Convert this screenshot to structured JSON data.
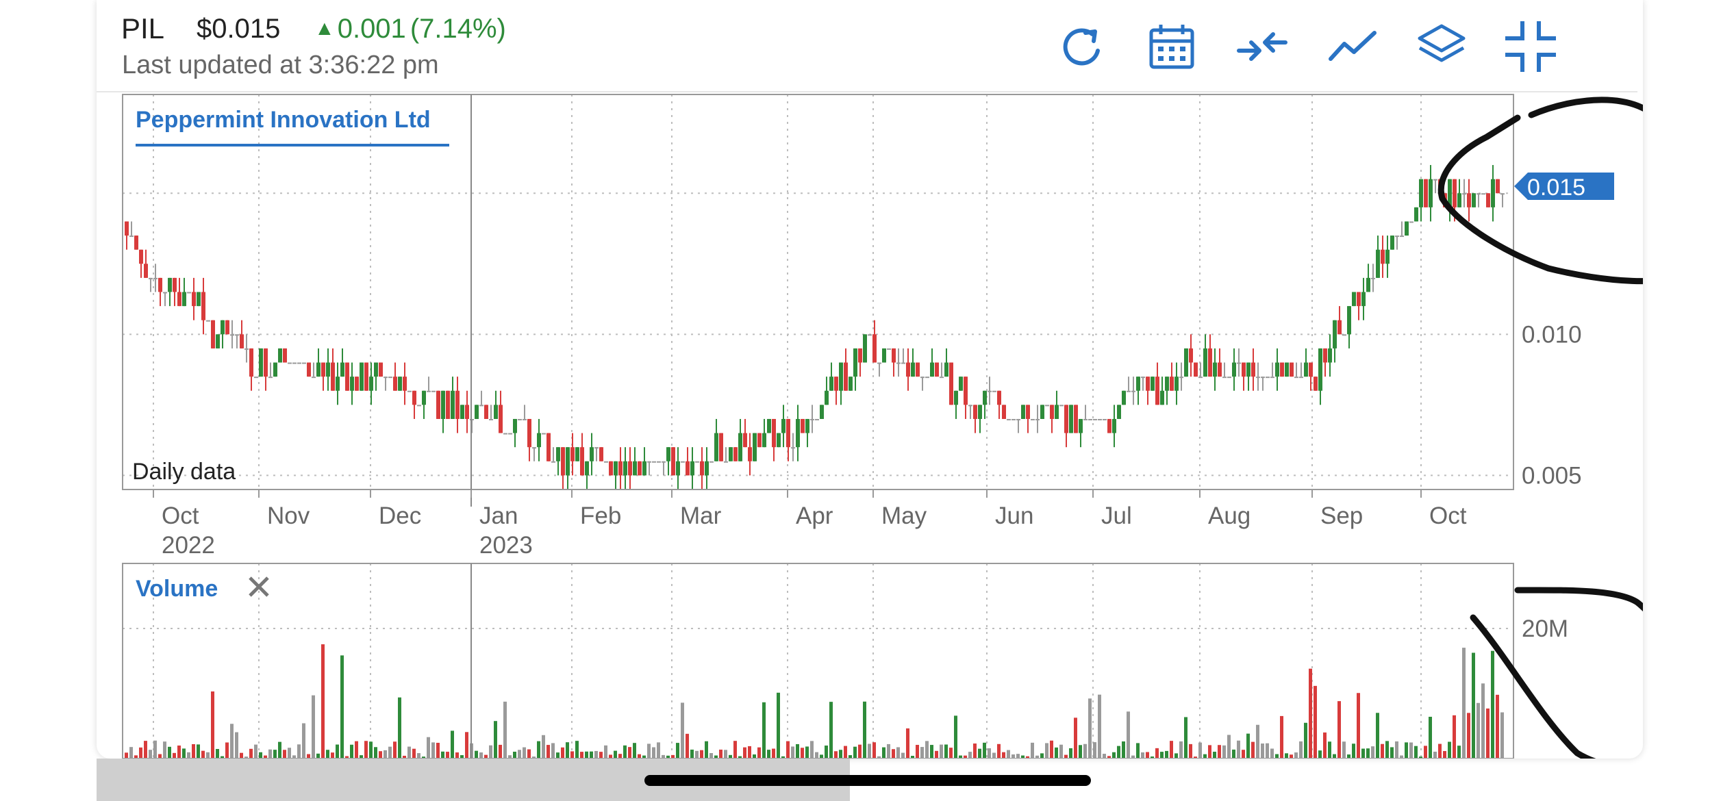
{
  "header": {
    "ticker": "PIL",
    "price": "$0.015",
    "change": "0.001",
    "change_pct": "(7.14%)",
    "updated": "Last updated at 3:36:22 pm",
    "up_color": "#2e8b3a",
    "toolbar": [
      {
        "name": "refresh-icon"
      },
      {
        "name": "calendar-icon"
      },
      {
        "name": "compare-arrows-icon"
      },
      {
        "name": "line-chart-icon"
      },
      {
        "name": "layers-icon"
      },
      {
        "name": "collapse-icon"
      }
    ]
  },
  "colors": {
    "accent": "#2a73c4",
    "up": "#2e8b3a",
    "down": "#d83b3b",
    "flat": "#9a9a9a",
    "grid": "#bdbdbd",
    "annotation": "#111111"
  },
  "chart_data": [
    {
      "type": "candlestick",
      "title": "Peppermint Innovation Ltd",
      "footnote": "Daily data",
      "x_tick_labels": [
        "Oct",
        "Nov",
        "Dec",
        "Jan",
        "Feb",
        "Mar",
        "Apr",
        "May",
        "Jun",
        "Jul",
        "Aug",
        "Sep",
        "Oct"
      ],
      "x_tick_year_labels": {
        "0": "2022",
        "3": "2023"
      },
      "y_tick_labels": [
        "0.005",
        "0.010"
      ],
      "ylim": [
        0.0045,
        0.0185
      ],
      "last_price_label": "0.015",
      "grid": true,
      "monthly_closes": [
        {
          "month": "Sep 2022",
          "value": 0.014
        },
        {
          "month": "Oct 2022",
          "value": 0.012
        },
        {
          "month": "Nov 2022",
          "value": 0.009
        },
        {
          "month": "Dec 2022",
          "value": 0.0085
        },
        {
          "month": "Jan 2023",
          "value": 0.0075
        },
        {
          "month": "Feb 2023",
          "value": 0.0055
        },
        {
          "month": "Mar 2023",
          "value": 0.0052
        },
        {
          "month": "Apr 2023",
          "value": 0.0065
        },
        {
          "month": "May 2023",
          "value": 0.0095
        },
        {
          "month": "Jun 2023",
          "value": 0.0075
        },
        {
          "month": "Jul 2023",
          "value": 0.007
        },
        {
          "month": "Aug 2023",
          "value": 0.009
        },
        {
          "month": "Sep 2023",
          "value": 0.0085
        },
        {
          "month": "Oct 2023",
          "value": 0.015
        }
      ]
    },
    {
      "type": "bar",
      "title": "Volume",
      "y_tick_labels": [
        "20M"
      ],
      "ylim": [
        0,
        30000000
      ],
      "grid": true
    }
  ]
}
